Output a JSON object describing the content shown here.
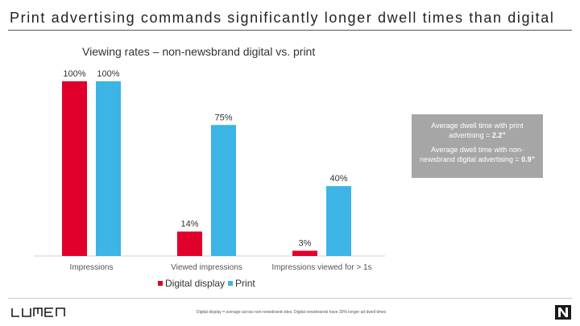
{
  "slide": {
    "title": "Print advertising commands significantly longer dwell times than digital"
  },
  "colors": {
    "digital": "#e0002b",
    "print": "#3cb4e5",
    "note_bg": "#a6a6a6"
  },
  "chart_data": {
    "type": "bar",
    "title": "Viewing rates – non-newsbrand digital vs. print",
    "categories": [
      "Impressions",
      "Viewed impressions",
      "Impressions viewed for > 1s"
    ],
    "series": [
      {
        "name": "Digital display",
        "values": [
          100,
          14,
          3
        ],
        "labels": [
          "100%",
          "14%",
          "3%"
        ]
      },
      {
        "name": "Print",
        "values": [
          100,
          75,
          40
        ],
        "labels": [
          "100%",
          "75%",
          "40%"
        ]
      }
    ],
    "ylim": [
      0,
      100
    ],
    "xlabel": "",
    "ylabel": "",
    "legend": "bottom",
    "grid": false
  },
  "note": {
    "print_text": "Average dwell time with print advertising = ",
    "print_value": "2.2”",
    "digital_text": "Average dwell time with non-newsbrand digital advertising = ",
    "digital_value": "0.9”"
  },
  "footer": {
    "logo_text": "LUMEN",
    "footnote": "Digital display = average across non-newsbrand sites. Digital newsbrands have 30% longer ad dwell times",
    "brand_icon": "newsworks-n-icon"
  }
}
